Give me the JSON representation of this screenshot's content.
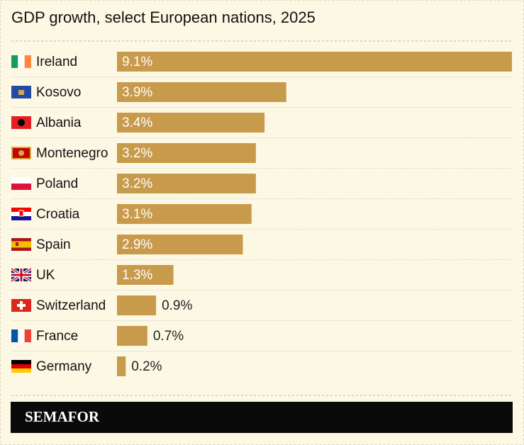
{
  "chart_data": {
    "type": "bar",
    "orientation": "horizontal",
    "title": "GDP growth, select European nations, 2025",
    "categories": [
      "Ireland",
      "Kosovo",
      "Albania",
      "Montenegro",
      "Poland",
      "Croatia",
      "Spain",
      "UK",
      "Switzerland",
      "France",
      "Germany"
    ],
    "values": [
      9.1,
      3.9,
      3.4,
      3.2,
      3.2,
      3.1,
      2.9,
      1.3,
      0.9,
      0.7,
      0.2
    ],
    "value_labels": [
      "9.1%",
      "3.9%",
      "3.4%",
      "3.2%",
      "3.2%",
      "3.1%",
      "2.9%",
      "1.3%",
      "0.9%",
      "0.7%",
      "0.2%"
    ],
    "color": "#c89a4b",
    "source": "SEMAFOR"
  }
}
